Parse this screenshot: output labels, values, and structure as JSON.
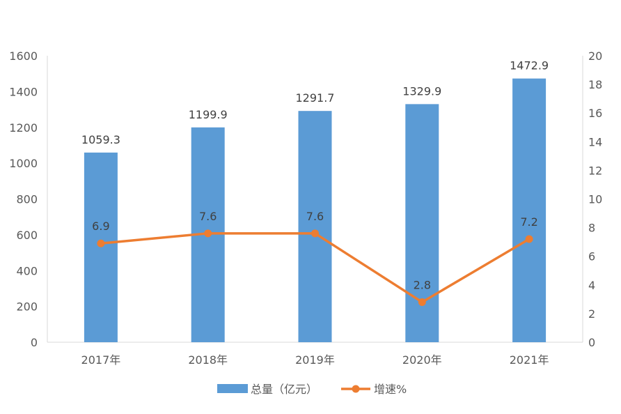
{
  "chart_data": {
    "type": "bar",
    "categories": [
      "2017年",
      "2018年",
      "2019年",
      "2020年",
      "2021年"
    ],
    "series": [
      {
        "name": "总量（亿元）",
        "type": "bar",
        "axis": "left",
        "color": "#5B9BD5",
        "values": [
          1059.3,
          1199.9,
          1291.7,
          1329.9,
          1472.9
        ],
        "labels": [
          "1059.3",
          "1199.9",
          "1291.7",
          "1329.9",
          "1472.9"
        ]
      },
      {
        "name": "增速%",
        "type": "line",
        "axis": "right",
        "color": "#ED7D31",
        "values": [
          6.9,
          7.6,
          7.6,
          2.8,
          7.2
        ],
        "labels": [
          "6.9",
          "7.6",
          "7.6",
          "2.8",
          "7.2"
        ]
      }
    ],
    "y_left": {
      "min": 0,
      "max": 1600,
      "ticks": [
        "0",
        "200",
        "400",
        "600",
        "800",
        "1000",
        "1200",
        "1400",
        "1600"
      ]
    },
    "y_right": {
      "min": 0,
      "max": 20,
      "ticks": [
        "0",
        "2",
        "4",
        "6",
        "8",
        "10",
        "12",
        "14",
        "16",
        "18",
        "20"
      ]
    },
    "legend_position": "bottom",
    "grid": false
  }
}
